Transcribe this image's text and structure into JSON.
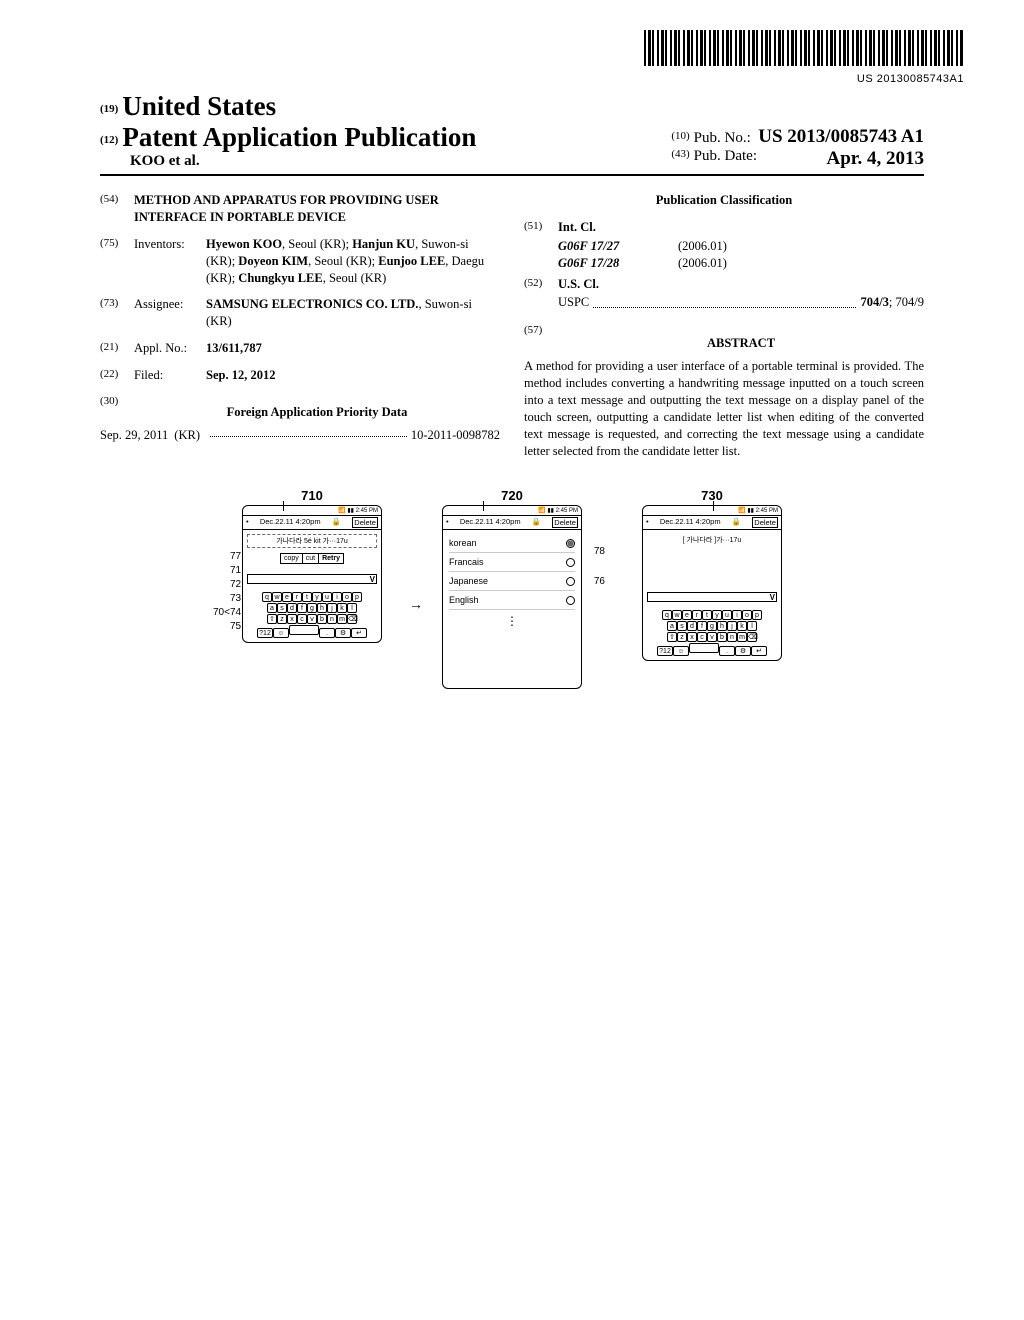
{
  "barcode_text": "US 20130085743A1",
  "header": {
    "code19": "(19)",
    "country": "United States",
    "code12": "(12)",
    "doctype": "Patent Application Publication",
    "authors": "KOO et al.",
    "code10": "(10)",
    "pubno_label": "Pub. No.:",
    "pubno": "US 2013/0085743 A1",
    "code43": "(43)",
    "pubdate_label": "Pub. Date:",
    "pubdate": "Apr. 4, 2013"
  },
  "left": {
    "f54": "(54)",
    "title": "METHOD AND APPARATUS FOR PROVIDING USER INTERFACE IN PORTABLE DEVICE",
    "f75": "(75)",
    "inventors_label": "Inventors:",
    "inventors": "Hyewon KOO, Seoul (KR); Hanjun KU, Suwon-si (KR); Doyeon KIM, Seoul (KR); Eunjoo LEE, Daegu (KR); Chungkyu LEE, Seoul (KR)",
    "f73": "(73)",
    "assignee_label": "Assignee:",
    "assignee": "SAMSUNG ELECTRONICS CO. LTD., Suwon-si (KR)",
    "f21": "(21)",
    "applno_label": "Appl. No.:",
    "applno": "13/611,787",
    "f22": "(22)",
    "filed_label": "Filed:",
    "filed": "Sep. 12, 2012",
    "f30": "(30)",
    "foreign_hdr": "Foreign Application Priority Data",
    "priority_date": "Sep. 29, 2011",
    "priority_cc": "(KR)",
    "priority_no": "10-2011-0098782"
  },
  "right": {
    "pubclass_hdr": "Publication Classification",
    "f51": "(51)",
    "intcl_label": "Int. Cl.",
    "intcl1": "G06F 17/27",
    "intcl1v": "(2006.01)",
    "intcl2": "G06F 17/28",
    "intcl2v": "(2006.01)",
    "f52": "(52)",
    "uscl_label": "U.S. Cl.",
    "uspc_label": "USPC",
    "uspc": "704/3; 704/9",
    "f57": "(57)",
    "abstract_hdr": "ABSTRACT",
    "abstract": "A method for providing a user interface of a portable terminal is provided. The method includes converting a handwriting message inputted on a touch screen into a text message and outputting the text message on a display panel of the touch screen, outputting a candidate letter list when editing of the converted text message is requested, and correcting the text message using a candidate letter selected from the candidate letter list."
  },
  "fig": {
    "labels": {
      "710": "710",
      "720": "720",
      "730": "730",
      "70": "70",
      "71": "71",
      "72": "72",
      "73": "73",
      "74": "74",
      "75": "75",
      "77": "77",
      "76": "76",
      "78": "78"
    },
    "status_time": "2:45 PM",
    "title_text": "Dec.22.11 4:20pm",
    "delete": "Delete",
    "text1": "가나다라 5é kit 가···17u",
    "text3": "[ 가나다라 ]가···17u",
    "ctx": {
      "copy": "copy",
      "cut": "cut",
      "retry": "Retry"
    },
    "v": "V",
    "keys_r1": [
      "q",
      "w",
      "e",
      "r",
      "t",
      "y",
      "u",
      "i",
      "o",
      "p"
    ],
    "keys_r2": [
      "a",
      "s",
      "d",
      "f",
      "g",
      "h",
      "j",
      "k",
      "l"
    ],
    "keys_r3": [
      "⇧",
      "z",
      "x",
      "c",
      "v",
      "b",
      "n",
      "m",
      "⌫"
    ],
    "keys_r4": [
      "?12",
      "☺",
      "␣",
      ".",
      "⚙",
      "↵"
    ],
    "langs": [
      {
        "name": "korean",
        "sel": true
      },
      {
        "name": "Francais",
        "sel": false
      },
      {
        "name": "Japanese",
        "sel": false
      },
      {
        "name": "English",
        "sel": false
      }
    ],
    "side": [
      "77",
      "71",
      "72",
      "73",
      "74",
      "75"
    ]
  }
}
